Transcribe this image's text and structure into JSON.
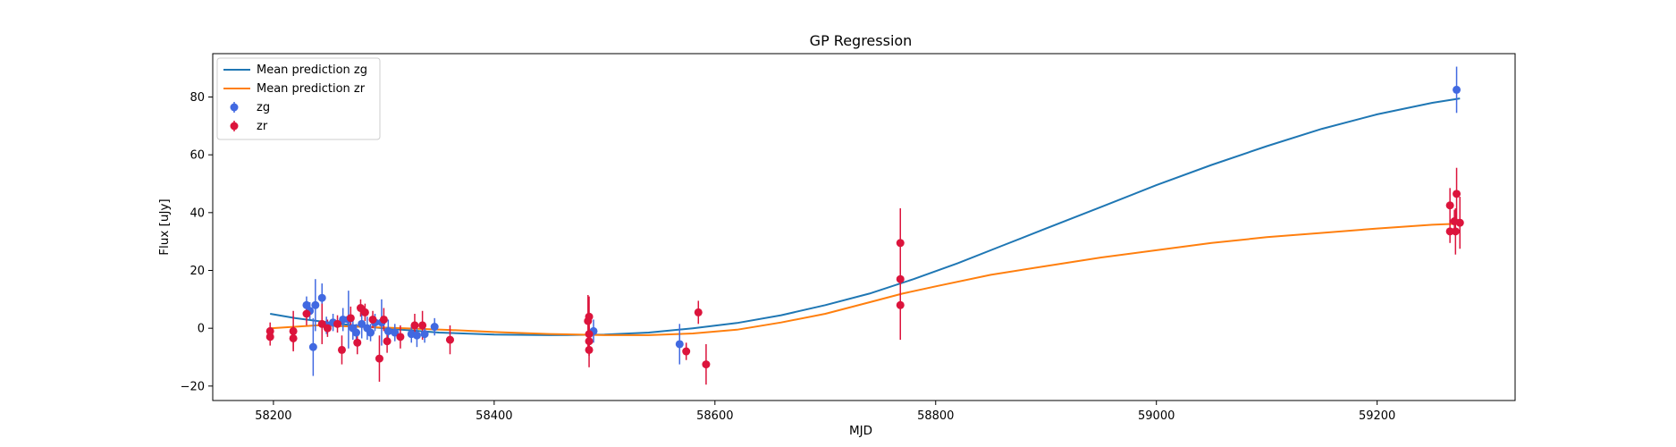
{
  "chart_data": {
    "type": "scatter",
    "title": "GP Regression",
    "xlabel": "MJD",
    "ylabel": "Flux [uJy]",
    "xlim": [
      58145,
      59325
    ],
    "ylim": [
      -25,
      95
    ],
    "x_ticks": [
      58200,
      58400,
      58600,
      58800,
      59000,
      59200
    ],
    "y_ticks": [
      -20,
      0,
      20,
      40,
      60,
      80
    ],
    "grid": false,
    "legend_position": "top-left",
    "lines": [
      {
        "name": "Mean prediction zg",
        "color": "#1f77b4",
        "x": [
          58197,
          58220,
          58260,
          58300,
          58350,
          58400,
          58450,
          58500,
          58540,
          58580,
          58620,
          58660,
          58700,
          58740,
          58780,
          58820,
          58860,
          58900,
          58950,
          59000,
          59050,
          59100,
          59150,
          59200,
          59250,
          59275
        ],
        "y": [
          5,
          3.5,
          1.5,
          0,
          -1.5,
          -2.2,
          -2.4,
          -2.2,
          -1.5,
          0,
          1.8,
          4.5,
          8,
          12,
          17,
          22.5,
          28.5,
          34.5,
          42,
          49.5,
          56.5,
          63,
          69,
          74,
          78,
          79.5
        ]
      },
      {
        "name": "Mean prediction zr",
        "color": "#ff7f0e",
        "x": [
          58197,
          58240,
          58280,
          58320,
          58360,
          58400,
          58450,
          58500,
          58540,
          58580,
          58620,
          58660,
          58700,
          58740,
          58770,
          58800,
          58850,
          58900,
          58950,
          59000,
          59050,
          59100,
          59150,
          59200,
          59250,
          59275
        ],
        "y": [
          0,
          1,
          0.5,
          0,
          -0.6,
          -1.3,
          -2,
          -2.4,
          -2.4,
          -1.8,
          -0.5,
          2,
          5,
          9,
          12,
          14.5,
          18.5,
          21.5,
          24.5,
          27,
          29.5,
          31.5,
          33,
          34.5,
          35.8,
          36.2
        ]
      }
    ],
    "series": [
      {
        "name": "zg",
        "color": "#4169e1",
        "points": [
          {
            "x": 58230,
            "y": 8,
            "err": 3
          },
          {
            "x": 58233,
            "y": 6,
            "err": 3
          },
          {
            "x": 58236,
            "y": -6.5,
            "err": 10
          },
          {
            "x": 58238,
            "y": 8,
            "err": 9
          },
          {
            "x": 58244,
            "y": 10.5,
            "err": 5
          },
          {
            "x": 58248,
            "y": 1,
            "err": 3
          },
          {
            "x": 58254,
            "y": 2,
            "err": 3
          },
          {
            "x": 58263,
            "y": 3,
            "err": 4
          },
          {
            "x": 58268,
            "y": 3,
            "err": 10
          },
          {
            "x": 58272,
            "y": 0,
            "err": 4
          },
          {
            "x": 58275,
            "y": -1.5,
            "err": 3
          },
          {
            "x": 58280,
            "y": 1.5,
            "err": 5
          },
          {
            "x": 58285,
            "y": 0,
            "err": 4
          },
          {
            "x": 58288,
            "y": -1.5,
            "err": 3
          },
          {
            "x": 58292,
            "y": 2,
            "err": 3
          },
          {
            "x": 58298,
            "y": 2,
            "err": 8
          },
          {
            "x": 58304,
            "y": -1,
            "err": 4
          },
          {
            "x": 58310,
            "y": -1.5,
            "err": 3
          },
          {
            "x": 58325,
            "y": -2,
            "err": 3
          },
          {
            "x": 58330,
            "y": -2.5,
            "err": 4
          },
          {
            "x": 58337,
            "y": -2,
            "err": 3
          },
          {
            "x": 58346,
            "y": 0.5,
            "err": 3
          },
          {
            "x": 58490,
            "y": -1,
            "err": 4
          },
          {
            "x": 58568,
            "y": -5.5,
            "err": 7
          },
          {
            "x": 59272,
            "y": 82.5,
            "err": 8
          }
        ]
      },
      {
        "name": "zr",
        "color": "#dc143c",
        "points": [
          {
            "x": 58197,
            "y": -1,
            "err": 3
          },
          {
            "x": 58197,
            "y": -3,
            "err": 3
          },
          {
            "x": 58218,
            "y": -1,
            "err": 7
          },
          {
            "x": 58218,
            "y": -3.5,
            "err": 4
          },
          {
            "x": 58230,
            "y": 5,
            "err": 4
          },
          {
            "x": 58244,
            "y": 1.5,
            "err": 7
          },
          {
            "x": 58249,
            "y": 0,
            "err": 3
          },
          {
            "x": 58258,
            "y": 1.5,
            "err": 3
          },
          {
            "x": 58262,
            "y": -7.5,
            "err": 5
          },
          {
            "x": 58270,
            "y": 3.5,
            "err": 4
          },
          {
            "x": 58276,
            "y": -5,
            "err": 4
          },
          {
            "x": 58279,
            "y": 7,
            "err": 3
          },
          {
            "x": 58283,
            "y": 5.5,
            "err": 3
          },
          {
            "x": 58290,
            "y": 3,
            "err": 3
          },
          {
            "x": 58296,
            "y": -10.5,
            "err": 8
          },
          {
            "x": 58300,
            "y": 3,
            "err": 4
          },
          {
            "x": 58303,
            "y": -4.5,
            "err": 4
          },
          {
            "x": 58315,
            "y": -3,
            "err": 4
          },
          {
            "x": 58328,
            "y": 1,
            "err": 4
          },
          {
            "x": 58335,
            "y": 1,
            "err": 5
          },
          {
            "x": 58360,
            "y": -4,
            "err": 5
          },
          {
            "x": 58485,
            "y": 2.5,
            "err": 9
          },
          {
            "x": 58486,
            "y": 4,
            "err": 7
          },
          {
            "x": 58486,
            "y": -2,
            "err": 5
          },
          {
            "x": 58486,
            "y": -4.5,
            "err": 5
          },
          {
            "x": 58486,
            "y": -7.5,
            "err": 6
          },
          {
            "x": 58574,
            "y": -8,
            "err": 3
          },
          {
            "x": 58585,
            "y": 5.5,
            "err": 4
          },
          {
            "x": 58592,
            "y": -12.5,
            "err": 7
          },
          {
            "x": 58768,
            "y": 29.5,
            "err": 12
          },
          {
            "x": 58768,
            "y": 17,
            "err": 4
          },
          {
            "x": 58768,
            "y": 8,
            "err": 12
          },
          {
            "x": 59266,
            "y": 42.5,
            "err": 6
          },
          {
            "x": 59266,
            "y": 33.5,
            "err": 4
          },
          {
            "x": 59270,
            "y": 37,
            "err": 4
          },
          {
            "x": 59271,
            "y": 33.5,
            "err": 8
          },
          {
            "x": 59272,
            "y": 46.5,
            "err": 9
          },
          {
            "x": 59275,
            "y": 36.5,
            "err": 9
          }
        ]
      }
    ]
  }
}
